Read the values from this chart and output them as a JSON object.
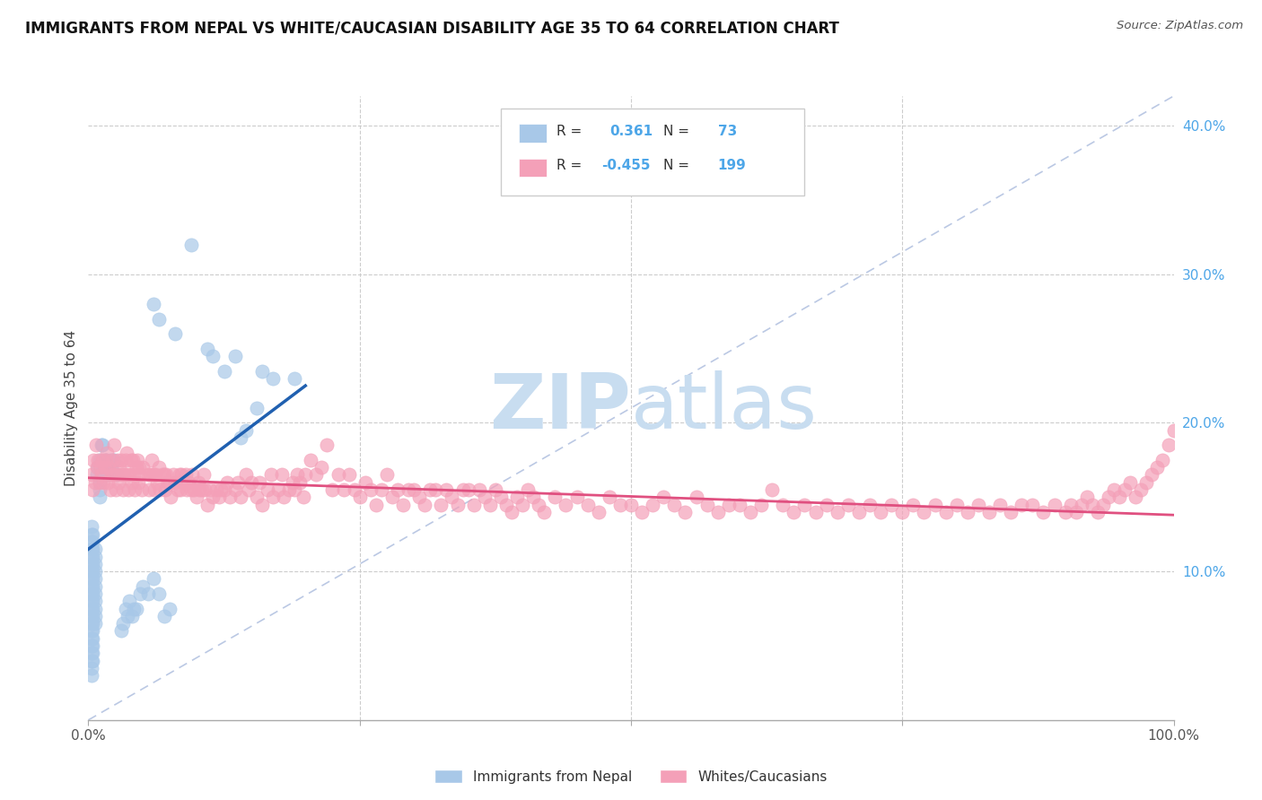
{
  "title": "IMMIGRANTS FROM NEPAL VS WHITE/CAUCASIAN DISABILITY AGE 35 TO 64 CORRELATION CHART",
  "source": "Source: ZipAtlas.com",
  "ylabel": "Disability Age 35 to 64",
  "xlim": [
    0,
    1.0
  ],
  "ylim": [
    0,
    0.42
  ],
  "yticks_right": [
    0.1,
    0.2,
    0.3,
    0.4
  ],
  "ytick_labels_right": [
    "10.0%",
    "20.0%",
    "30.0%",
    "40.0%"
  ],
  "legend_label1": "Immigrants from Nepal",
  "legend_label2": "Whites/Caucasians",
  "blue_color": "#a8c8e8",
  "pink_color": "#f4a0b8",
  "blue_line_color": "#2060b0",
  "pink_line_color": "#e05080",
  "blue_line": [
    [
      0.0,
      0.115
    ],
    [
      0.2,
      0.225
    ]
  ],
  "pink_line": [
    [
      0.0,
      0.163
    ],
    [
      1.0,
      0.138
    ]
  ],
  "diag_line": [
    [
      0.0,
      0.0
    ],
    [
      1.0,
      0.42
    ]
  ],
  "blue_scatter": [
    [
      0.003,
      0.13
    ],
    [
      0.003,
      0.125
    ],
    [
      0.003,
      0.12
    ],
    [
      0.003,
      0.115
    ],
    [
      0.003,
      0.11
    ],
    [
      0.003,
      0.105
    ],
    [
      0.003,
      0.1
    ],
    [
      0.003,
      0.095
    ],
    [
      0.003,
      0.09
    ],
    [
      0.003,
      0.085
    ],
    [
      0.003,
      0.08
    ],
    [
      0.003,
      0.075
    ],
    [
      0.003,
      0.07
    ],
    [
      0.003,
      0.065
    ],
    [
      0.003,
      0.06
    ],
    [
      0.003,
      0.055
    ],
    [
      0.003,
      0.05
    ],
    [
      0.003,
      0.045
    ],
    [
      0.003,
      0.04
    ],
    [
      0.003,
      0.035
    ],
    [
      0.003,
      0.03
    ],
    [
      0.004,
      0.125
    ],
    [
      0.004,
      0.12
    ],
    [
      0.004,
      0.115
    ],
    [
      0.004,
      0.11
    ],
    [
      0.004,
      0.105
    ],
    [
      0.004,
      0.1
    ],
    [
      0.004,
      0.095
    ],
    [
      0.004,
      0.09
    ],
    [
      0.004,
      0.085
    ],
    [
      0.004,
      0.08
    ],
    [
      0.004,
      0.075
    ],
    [
      0.004,
      0.07
    ],
    [
      0.004,
      0.065
    ],
    [
      0.004,
      0.06
    ],
    [
      0.004,
      0.055
    ],
    [
      0.004,
      0.05
    ],
    [
      0.004,
      0.045
    ],
    [
      0.004,
      0.04
    ],
    [
      0.006,
      0.115
    ],
    [
      0.006,
      0.11
    ],
    [
      0.006,
      0.105
    ],
    [
      0.006,
      0.1
    ],
    [
      0.006,
      0.095
    ],
    [
      0.006,
      0.09
    ],
    [
      0.006,
      0.085
    ],
    [
      0.006,
      0.08
    ],
    [
      0.006,
      0.075
    ],
    [
      0.006,
      0.07
    ],
    [
      0.006,
      0.065
    ],
    [
      0.008,
      0.165
    ],
    [
      0.009,
      0.17
    ],
    [
      0.01,
      0.175
    ],
    [
      0.01,
      0.16
    ],
    [
      0.01,
      0.155
    ],
    [
      0.01,
      0.15
    ],
    [
      0.012,
      0.185
    ],
    [
      0.013,
      0.185
    ],
    [
      0.015,
      0.175
    ],
    [
      0.016,
      0.175
    ],
    [
      0.017,
      0.165
    ],
    [
      0.018,
      0.17
    ],
    [
      0.02,
      0.175
    ],
    [
      0.021,
      0.17
    ],
    [
      0.023,
      0.175
    ],
    [
      0.024,
      0.175
    ],
    [
      0.026,
      0.165
    ],
    [
      0.03,
      0.06
    ],
    [
      0.032,
      0.065
    ],
    [
      0.034,
      0.075
    ],
    [
      0.036,
      0.07
    ],
    [
      0.038,
      0.08
    ],
    [
      0.04,
      0.07
    ],
    [
      0.042,
      0.075
    ],
    [
      0.044,
      0.075
    ],
    [
      0.048,
      0.085
    ],
    [
      0.05,
      0.09
    ],
    [
      0.055,
      0.085
    ],
    [
      0.06,
      0.095
    ],
    [
      0.065,
      0.085
    ],
    [
      0.07,
      0.07
    ],
    [
      0.075,
      0.075
    ],
    [
      0.06,
      0.28
    ],
    [
      0.065,
      0.27
    ],
    [
      0.08,
      0.26
    ],
    [
      0.095,
      0.32
    ],
    [
      0.11,
      0.25
    ],
    [
      0.115,
      0.245
    ],
    [
      0.125,
      0.235
    ],
    [
      0.135,
      0.245
    ],
    [
      0.155,
      0.21
    ],
    [
      0.16,
      0.235
    ],
    [
      0.17,
      0.23
    ],
    [
      0.19,
      0.23
    ],
    [
      0.14,
      0.19
    ],
    [
      0.145,
      0.195
    ]
  ],
  "pink_scatter": [
    [
      0.003,
      0.165
    ],
    [
      0.004,
      0.155
    ],
    [
      0.005,
      0.175
    ],
    [
      0.006,
      0.16
    ],
    [
      0.007,
      0.185
    ],
    [
      0.008,
      0.17
    ],
    [
      0.009,
      0.175
    ],
    [
      0.01,
      0.16
    ],
    [
      0.011,
      0.17
    ],
    [
      0.012,
      0.165
    ],
    [
      0.013,
      0.175
    ],
    [
      0.014,
      0.16
    ],
    [
      0.015,
      0.17
    ],
    [
      0.016,
      0.175
    ],
    [
      0.017,
      0.18
    ],
    [
      0.018,
      0.16
    ],
    [
      0.019,
      0.17
    ],
    [
      0.02,
      0.155
    ],
    [
      0.021,
      0.165
    ],
    [
      0.022,
      0.175
    ],
    [
      0.023,
      0.165
    ],
    [
      0.024,
      0.185
    ],
    [
      0.025,
      0.155
    ],
    [
      0.026,
      0.165
    ],
    [
      0.027,
      0.175
    ],
    [
      0.028,
      0.16
    ],
    [
      0.029,
      0.17
    ],
    [
      0.03,
      0.175
    ],
    [
      0.031,
      0.165
    ],
    [
      0.032,
      0.155
    ],
    [
      0.033,
      0.165
    ],
    [
      0.034,
      0.175
    ],
    [
      0.035,
      0.18
    ],
    [
      0.036,
      0.165
    ],
    [
      0.037,
      0.155
    ],
    [
      0.038,
      0.165
    ],
    [
      0.039,
      0.175
    ],
    [
      0.04,
      0.16
    ],
    [
      0.041,
      0.175
    ],
    [
      0.042,
      0.165
    ],
    [
      0.043,
      0.155
    ],
    [
      0.044,
      0.17
    ],
    [
      0.045,
      0.175
    ],
    [
      0.046,
      0.16
    ],
    [
      0.047,
      0.17
    ],
    [
      0.048,
      0.165
    ],
    [
      0.049,
      0.155
    ],
    [
      0.05,
      0.17
    ],
    [
      0.055,
      0.165
    ],
    [
      0.056,
      0.155
    ],
    [
      0.057,
      0.165
    ],
    [
      0.058,
      0.175
    ],
    [
      0.06,
      0.165
    ],
    [
      0.061,
      0.155
    ],
    [
      0.062,
      0.165
    ],
    [
      0.063,
      0.16
    ],
    [
      0.065,
      0.17
    ],
    [
      0.066,
      0.155
    ],
    [
      0.068,
      0.165
    ],
    [
      0.07,
      0.165
    ],
    [
      0.071,
      0.155
    ],
    [
      0.072,
      0.165
    ],
    [
      0.073,
      0.16
    ],
    [
      0.075,
      0.16
    ],
    [
      0.076,
      0.15
    ],
    [
      0.078,
      0.165
    ],
    [
      0.08,
      0.16
    ],
    [
      0.082,
      0.155
    ],
    [
      0.084,
      0.165
    ],
    [
      0.085,
      0.155
    ],
    [
      0.086,
      0.165
    ],
    [
      0.087,
      0.16
    ],
    [
      0.09,
      0.165
    ],
    [
      0.091,
      0.155
    ],
    [
      0.092,
      0.16
    ],
    [
      0.095,
      0.155
    ],
    [
      0.096,
      0.165
    ],
    [
      0.097,
      0.155
    ],
    [
      0.1,
      0.15
    ],
    [
      0.101,
      0.16
    ],
    [
      0.102,
      0.155
    ],
    [
      0.105,
      0.155
    ],
    [
      0.106,
      0.165
    ],
    [
      0.107,
      0.155
    ],
    [
      0.11,
      0.145
    ],
    [
      0.112,
      0.155
    ],
    [
      0.115,
      0.15
    ],
    [
      0.118,
      0.155
    ],
    [
      0.12,
      0.15
    ],
    [
      0.122,
      0.155
    ],
    [
      0.125,
      0.155
    ],
    [
      0.128,
      0.16
    ],
    [
      0.13,
      0.15
    ],
    [
      0.135,
      0.155
    ],
    [
      0.138,
      0.16
    ],
    [
      0.14,
      0.15
    ],
    [
      0.145,
      0.165
    ],
    [
      0.148,
      0.155
    ],
    [
      0.15,
      0.16
    ],
    [
      0.155,
      0.15
    ],
    [
      0.158,
      0.16
    ],
    [
      0.16,
      0.145
    ],
    [
      0.165,
      0.155
    ],
    [
      0.168,
      0.165
    ],
    [
      0.17,
      0.15
    ],
    [
      0.175,
      0.155
    ],
    [
      0.178,
      0.165
    ],
    [
      0.18,
      0.15
    ],
    [
      0.185,
      0.155
    ],
    [
      0.188,
      0.16
    ],
    [
      0.19,
      0.155
    ],
    [
      0.192,
      0.165
    ],
    [
      0.195,
      0.16
    ],
    [
      0.198,
      0.15
    ],
    [
      0.2,
      0.165
    ],
    [
      0.205,
      0.175
    ],
    [
      0.21,
      0.165
    ],
    [
      0.215,
      0.17
    ],
    [
      0.22,
      0.185
    ],
    [
      0.225,
      0.155
    ],
    [
      0.23,
      0.165
    ],
    [
      0.235,
      0.155
    ],
    [
      0.24,
      0.165
    ],
    [
      0.245,
      0.155
    ],
    [
      0.25,
      0.15
    ],
    [
      0.255,
      0.16
    ],
    [
      0.26,
      0.155
    ],
    [
      0.265,
      0.145
    ],
    [
      0.27,
      0.155
    ],
    [
      0.275,
      0.165
    ],
    [
      0.28,
      0.15
    ],
    [
      0.285,
      0.155
    ],
    [
      0.29,
      0.145
    ],
    [
      0.295,
      0.155
    ],
    [
      0.3,
      0.155
    ],
    [
      0.305,
      0.15
    ],
    [
      0.31,
      0.145
    ],
    [
      0.315,
      0.155
    ],
    [
      0.32,
      0.155
    ],
    [
      0.325,
      0.145
    ],
    [
      0.33,
      0.155
    ],
    [
      0.335,
      0.15
    ],
    [
      0.34,
      0.145
    ],
    [
      0.345,
      0.155
    ],
    [
      0.35,
      0.155
    ],
    [
      0.355,
      0.145
    ],
    [
      0.36,
      0.155
    ],
    [
      0.365,
      0.15
    ],
    [
      0.37,
      0.145
    ],
    [
      0.375,
      0.155
    ],
    [
      0.38,
      0.15
    ],
    [
      0.385,
      0.145
    ],
    [
      0.39,
      0.14
    ],
    [
      0.395,
      0.15
    ],
    [
      0.4,
      0.145
    ],
    [
      0.405,
      0.155
    ],
    [
      0.41,
      0.15
    ],
    [
      0.415,
      0.145
    ],
    [
      0.42,
      0.14
    ],
    [
      0.43,
      0.15
    ],
    [
      0.44,
      0.145
    ],
    [
      0.45,
      0.15
    ],
    [
      0.46,
      0.145
    ],
    [
      0.47,
      0.14
    ],
    [
      0.48,
      0.15
    ],
    [
      0.49,
      0.145
    ],
    [
      0.5,
      0.145
    ],
    [
      0.51,
      0.14
    ],
    [
      0.52,
      0.145
    ],
    [
      0.53,
      0.15
    ],
    [
      0.54,
      0.145
    ],
    [
      0.55,
      0.14
    ],
    [
      0.56,
      0.15
    ],
    [
      0.57,
      0.145
    ],
    [
      0.58,
      0.14
    ],
    [
      0.59,
      0.145
    ],
    [
      0.6,
      0.145
    ],
    [
      0.61,
      0.14
    ],
    [
      0.62,
      0.145
    ],
    [
      0.63,
      0.155
    ],
    [
      0.64,
      0.145
    ],
    [
      0.65,
      0.14
    ],
    [
      0.66,
      0.145
    ],
    [
      0.67,
      0.14
    ],
    [
      0.68,
      0.145
    ],
    [
      0.69,
      0.14
    ],
    [
      0.7,
      0.145
    ],
    [
      0.71,
      0.14
    ],
    [
      0.72,
      0.145
    ],
    [
      0.73,
      0.14
    ],
    [
      0.74,
      0.145
    ],
    [
      0.75,
      0.14
    ],
    [
      0.76,
      0.145
    ],
    [
      0.77,
      0.14
    ],
    [
      0.78,
      0.145
    ],
    [
      0.79,
      0.14
    ],
    [
      0.8,
      0.145
    ],
    [
      0.81,
      0.14
    ],
    [
      0.82,
      0.145
    ],
    [
      0.83,
      0.14
    ],
    [
      0.84,
      0.145
    ],
    [
      0.85,
      0.14
    ],
    [
      0.86,
      0.145
    ],
    [
      0.87,
      0.145
    ],
    [
      0.88,
      0.14
    ],
    [
      0.89,
      0.145
    ],
    [
      0.9,
      0.14
    ],
    [
      0.905,
      0.145
    ],
    [
      0.91,
      0.14
    ],
    [
      0.915,
      0.145
    ],
    [
      0.92,
      0.15
    ],
    [
      0.925,
      0.145
    ],
    [
      0.93,
      0.14
    ],
    [
      0.935,
      0.145
    ],
    [
      0.94,
      0.15
    ],
    [
      0.945,
      0.155
    ],
    [
      0.95,
      0.15
    ],
    [
      0.955,
      0.155
    ],
    [
      0.96,
      0.16
    ],
    [
      0.965,
      0.15
    ],
    [
      0.97,
      0.155
    ],
    [
      0.975,
      0.16
    ],
    [
      0.98,
      0.165
    ],
    [
      0.985,
      0.17
    ],
    [
      0.99,
      0.175
    ],
    [
      0.995,
      0.185
    ],
    [
      1.0,
      0.195
    ]
  ],
  "watermark_zip": "ZIP",
  "watermark_atlas": "atlas",
  "watermark_color": "#c8ddf0",
  "background_color": "#ffffff",
  "grid_color": "#cccccc"
}
